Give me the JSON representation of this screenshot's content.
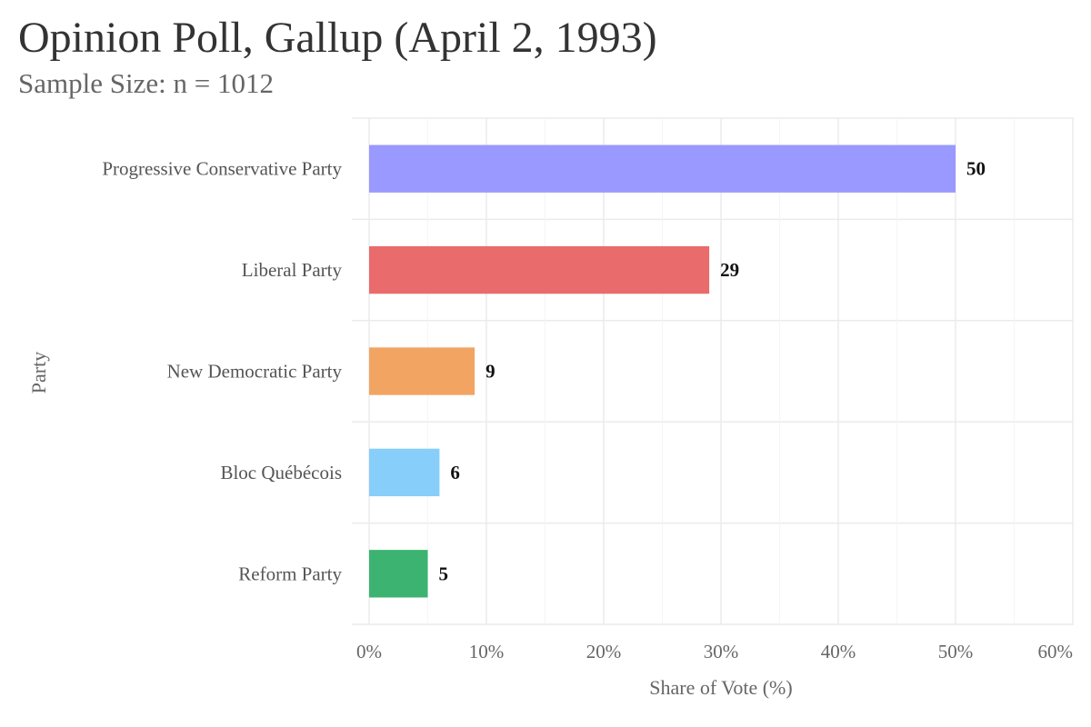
{
  "title": "Opinion Poll, Gallup (April 2, 1993)",
  "subtitle": "Sample Size: n = 1012",
  "chart_data": {
    "type": "bar",
    "orientation": "horizontal",
    "title": "Opinion Poll, Gallup (April 2, 1993)",
    "subtitle": "Sample Size: n = 1012",
    "xlabel": "Share of Vote (%)",
    "ylabel": "Party",
    "xlim": [
      0,
      60
    ],
    "x_ticks": [
      "0%",
      "10%",
      "20%",
      "30%",
      "40%",
      "50%",
      "60%"
    ],
    "grid": true,
    "categories": [
      "Progressive Conservative Party",
      "Liberal Party",
      "New Democratic Party",
      "Bloc Québécois",
      "Reform Party"
    ],
    "values": [
      50,
      29,
      9,
      6,
      5
    ],
    "data_labels": [
      "50",
      "29",
      "9",
      "6",
      "5"
    ],
    "colors": [
      "#9999FF",
      "#E96B6B",
      "#F2A562",
      "#87CEFA",
      "#3CB371"
    ]
  }
}
